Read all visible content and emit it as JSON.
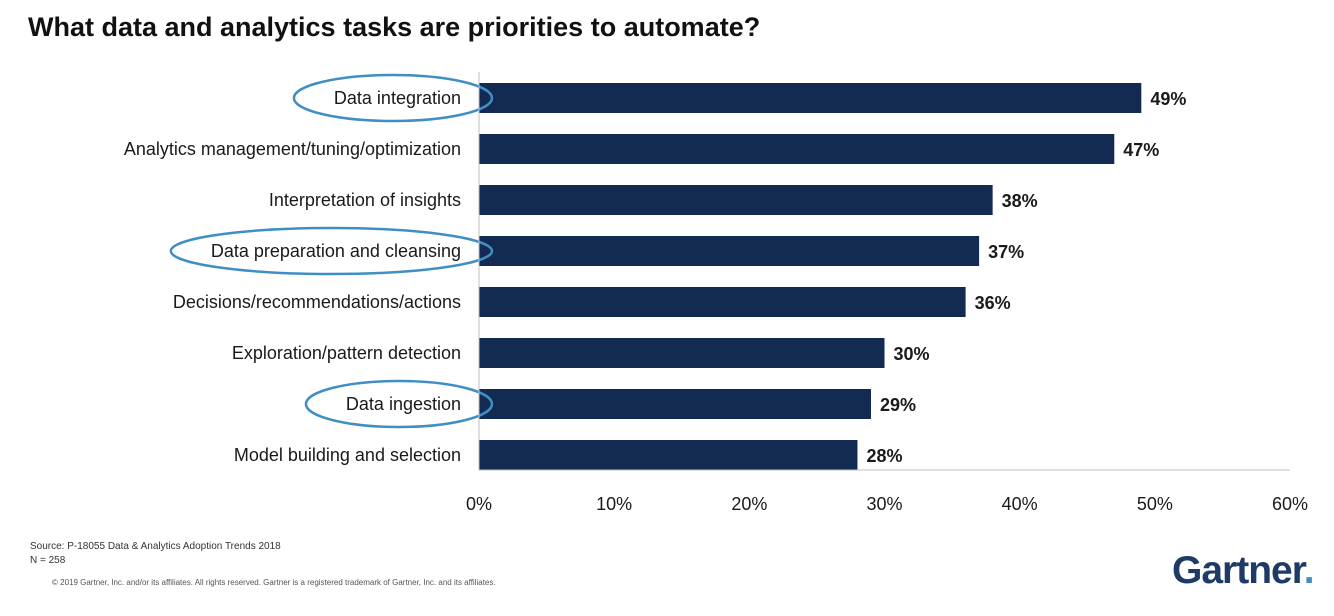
{
  "chart_data": {
    "type": "bar",
    "orientation": "horizontal",
    "title": "What data and analytics tasks are priorities to automate?",
    "categories": [
      "Data integration",
      "Analytics management/tuning/optimization",
      "Interpretation of insights",
      "Data preparation and cleansing",
      "Decisions/recommendations/actions",
      "Exploration/pattern detection",
      "Data ingestion",
      "Model building and selection"
    ],
    "values": [
      49,
      47,
      38,
      37,
      36,
      30,
      29,
      28
    ],
    "value_labels": [
      "49%",
      "47%",
      "38%",
      "37%",
      "36%",
      "30%",
      "29%",
      "28%"
    ],
    "highlighted_categories": [
      "Data integration",
      "Data preparation and cleansing",
      "Data ingestion"
    ],
    "xlim": [
      0,
      60
    ],
    "xticks": [
      0,
      10,
      20,
      30,
      40,
      50,
      60
    ],
    "xtick_labels": [
      "0%",
      "10%",
      "20%",
      "30%",
      "40%",
      "50%",
      "60%"
    ],
    "xlabel": "",
    "ylabel": "",
    "grid": false,
    "legend": "none",
    "colors": {
      "bar": "#132a52",
      "highlight": "#3f8fc4"
    }
  },
  "footer": {
    "source": "Source: P-18055 Data & Analytics Adoption Trends 2018",
    "n": "N = 258",
    "copyright": "© 2019 Gartner, Inc. and/or its affiliates. All rights reserved. Gartner is a registered trademark of Gartner, Inc. and its affiliates."
  },
  "brand": {
    "name": "Gartner",
    "dot": "."
  }
}
